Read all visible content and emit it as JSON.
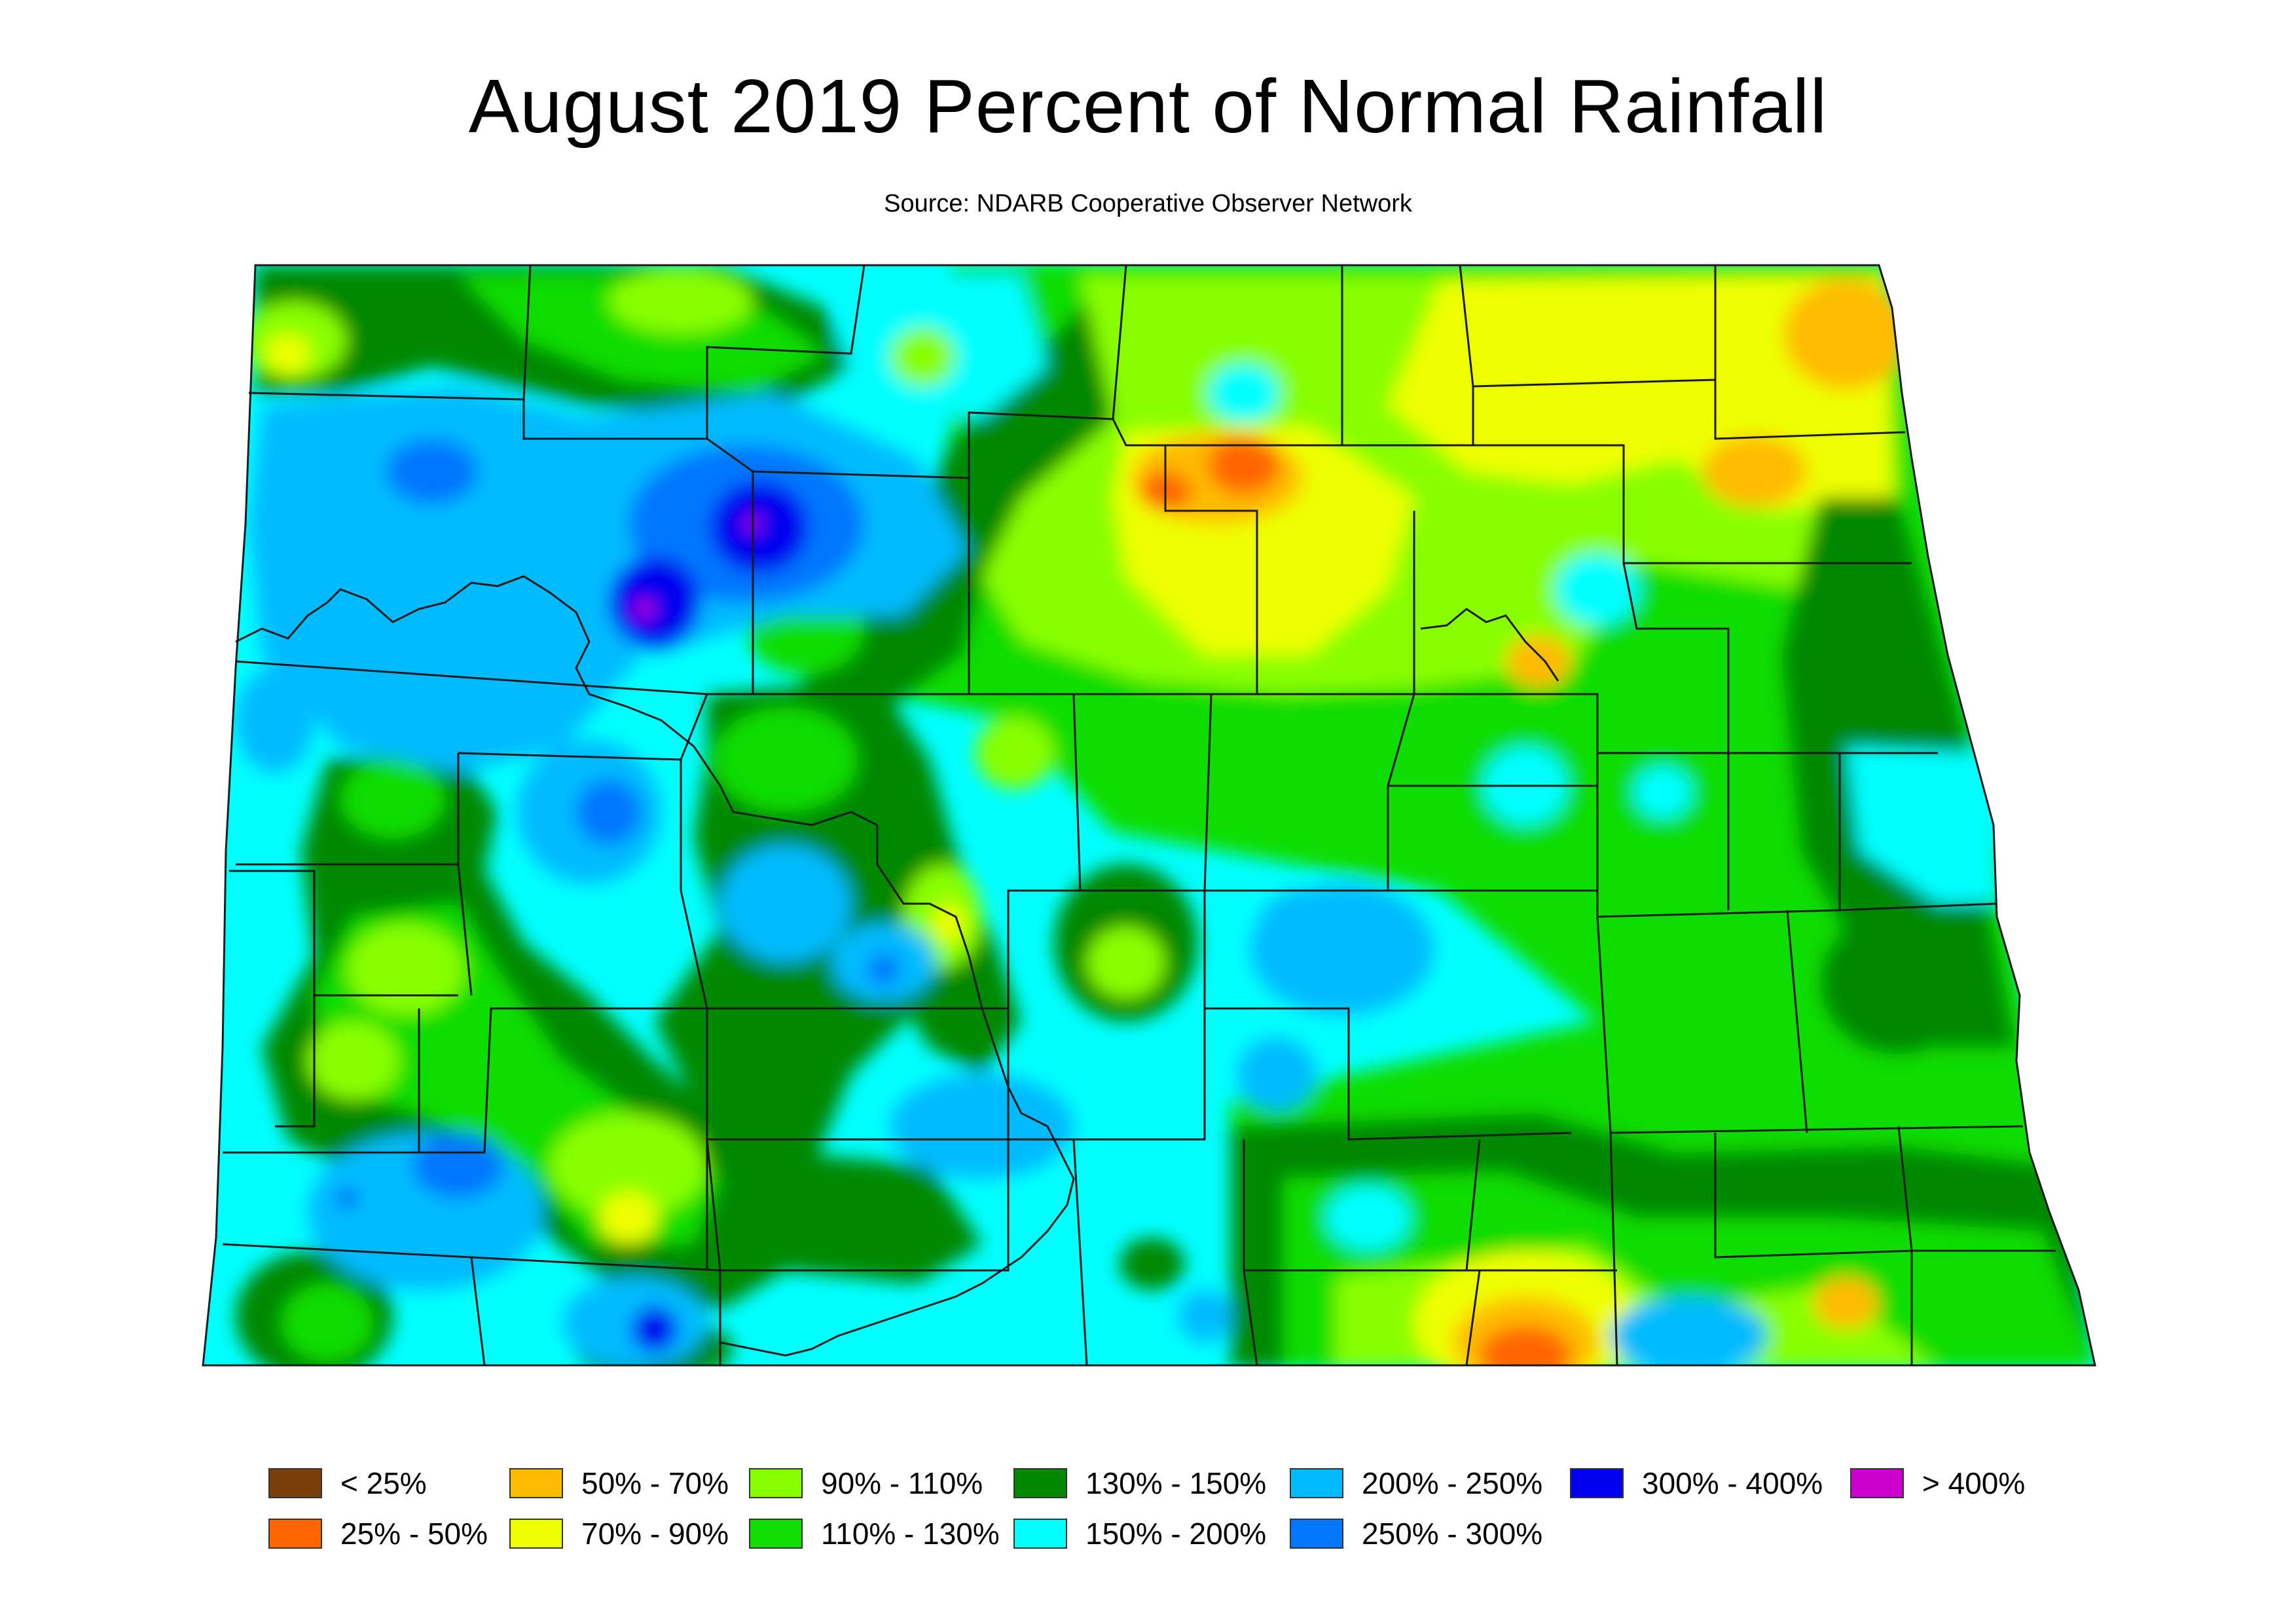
{
  "title": "August 2019 Percent of Normal Rainfall",
  "subtitle": "Source: NDARB Cooperative Observer Network",
  "colors": {
    "lt25": "#7a3f0a",
    "p25_50": "#ff6600",
    "p50_70": "#ffbb00",
    "p70_90": "#eeff00",
    "p90_110": "#88ff00",
    "p110_130": "#11dd00",
    "p130_150": "#008800",
    "p150_200": "#00ffff",
    "p200_250": "#00bbff",
    "p250_300": "#0077ff",
    "p300_400": "#0000ee",
    "gt400": "#cc00cc"
  },
  "legend": [
    {
      "label": "< 25%",
      "color": "#7a3f0a"
    },
    {
      "label": "25% - 50%",
      "color": "#ff6600"
    },
    {
      "label": "50% - 70%",
      "color": "#ffbb00"
    },
    {
      "label": "70% - 90%",
      "color": "#eeff00"
    },
    {
      "label": "90% - 110%",
      "color": "#88ff00"
    },
    {
      "label": "110% - 130%",
      "color": "#11dd00"
    },
    {
      "label": "130% - 150%",
      "color": "#008800"
    },
    {
      "label": "150% - 200%",
      "color": "#00ffff"
    },
    {
      "label": "200% - 250%",
      "color": "#00bbff"
    },
    {
      "label": "250% - 300%",
      "color": "#0077ff"
    },
    {
      "label": "300% - 400%",
      "color": "#0000ee"
    },
    {
      "label": "> 400%",
      "color": "#cc00cc"
    }
  ]
}
